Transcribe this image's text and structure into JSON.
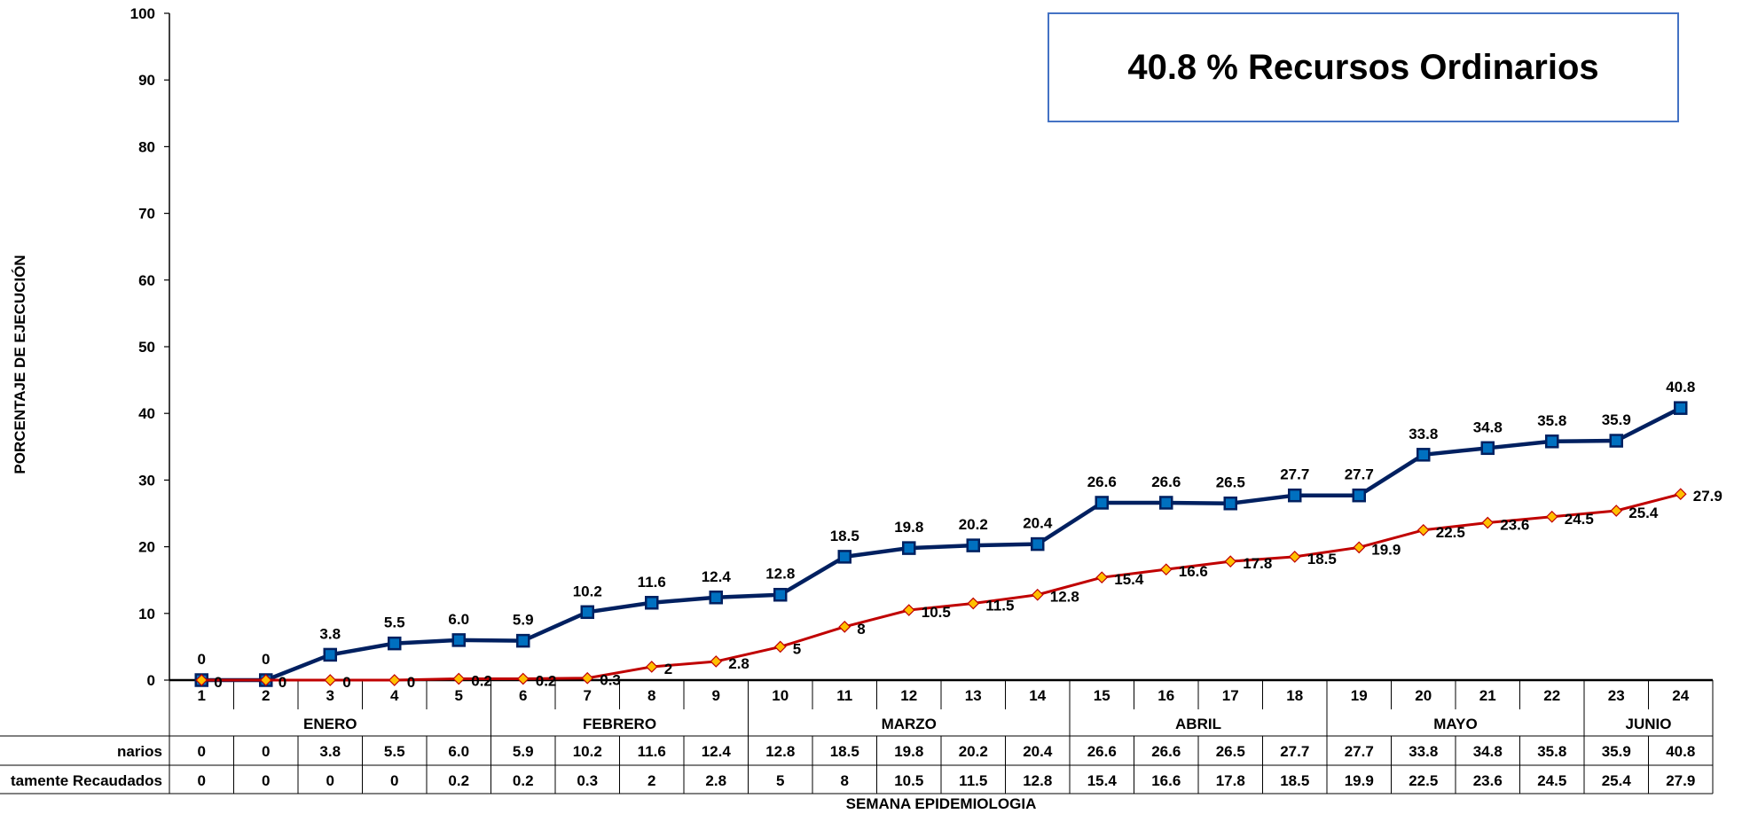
{
  "chart_data": {
    "type": "line",
    "annotation": "40.8 % Recursos Ordinarios",
    "ylabel": "PORCENTAJE DE EJECUCIÓN",
    "xlabel": "SEMANA EPIDEMIOLOGIA",
    "ylim": [
      0,
      100
    ],
    "yticks": [
      "0",
      "10",
      "20",
      "30",
      "40",
      "50",
      "60",
      "70",
      "80",
      "90",
      "100"
    ],
    "x": [
      "1",
      "2",
      "3",
      "4",
      "5",
      "6",
      "7",
      "8",
      "9",
      "10",
      "11",
      "12",
      "13",
      "14",
      "15",
      "16",
      "17",
      "18",
      "19",
      "20",
      "21",
      "22",
      "23",
      "24"
    ],
    "months": [
      {
        "name": "ENERO",
        "weeks": 5
      },
      {
        "name": "FEBRERO",
        "weeks": 4
      },
      {
        "name": "MARZO",
        "weeks": 5
      },
      {
        "name": "ABRIL",
        "weeks": 4
      },
      {
        "name": "MAYO",
        "weeks": 4
      },
      {
        "name": "JUNIO",
        "weeks": 2
      }
    ],
    "series": [
      {
        "name": "narios",
        "color": "#002060",
        "marker_fill": "#0070C0",
        "marker": "square",
        "values": [
          0,
          0,
          3.8,
          5.5,
          6.0,
          5.9,
          10.2,
          11.6,
          12.4,
          12.8,
          18.5,
          19.8,
          20.2,
          20.4,
          26.6,
          26.6,
          26.5,
          27.7,
          27.7,
          33.8,
          34.8,
          35.8,
          35.9,
          40.8
        ],
        "labels": [
          "0",
          "0",
          "3.8",
          "5.5",
          "6.0",
          "5.9",
          "10.2",
          "11.6",
          "12.4",
          "12.8",
          "18.5",
          "19.8",
          "20.2",
          "20.4",
          "26.6",
          "26.6",
          "26.5",
          "27.7",
          "27.7",
          "33.8",
          "34.8",
          "35.8",
          "35.9",
          "40.8"
        ]
      },
      {
        "name": "tamente Recaudados",
        "color": "#C00000",
        "marker_fill": "#FFC000",
        "marker": "diamond",
        "values": [
          0,
          0,
          0,
          0,
          0.2,
          0.2,
          0.3,
          2,
          2.8,
          5,
          8,
          10.5,
          11.5,
          12.8,
          15.4,
          16.6,
          17.8,
          18.5,
          19.9,
          22.5,
          23.6,
          24.5,
          25.4,
          27.9
        ],
        "labels": [
          "0",
          "0",
          "0",
          "0",
          "0.2",
          "0.2",
          "0.3",
          "2",
          "2.8",
          "5",
          "8",
          "10.5",
          "11.5",
          "12.8",
          "15.4",
          "16.6",
          "17.8",
          "18.5",
          "19.9",
          "22.5",
          "23.6",
          "24.5",
          "25.4",
          "27.9"
        ]
      }
    ]
  }
}
